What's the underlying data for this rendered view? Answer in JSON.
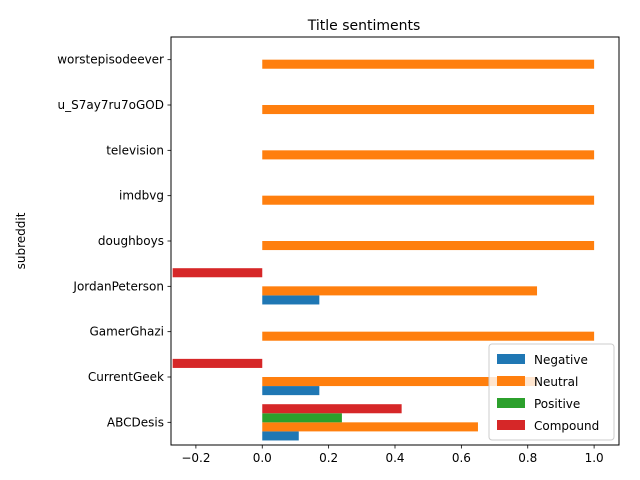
{
  "chart_data": {
    "type": "bar",
    "orientation": "horizontal",
    "title": "Title sentiments",
    "xlabel": "",
    "ylabel": "subreddit",
    "xlim": [
      -0.275,
      1.075
    ],
    "xticks": [
      -0.2,
      0.0,
      0.2,
      0.4,
      0.6,
      0.8,
      1.0
    ],
    "xtick_labels": [
      "−0.2",
      "0.0",
      "0.2",
      "0.4",
      "0.6",
      "0.8",
      "1.0"
    ],
    "categories": [
      "ABCDesis",
      "CurrentGeek",
      "GamerGhazi",
      "JordanPeterson",
      "doughboys",
      "imdbvg",
      "television",
      "u_S7ay7ru7oGOD",
      "worstepisodeever"
    ],
    "series": [
      {
        "name": "Negative",
        "color": "#1f77b4",
        "values": [
          0.11,
          0.172,
          0.0,
          0.172,
          0.0,
          0.0,
          0.0,
          0.0,
          0.0
        ]
      },
      {
        "name": "Neutral",
        "color": "#ff7f0e",
        "values": [
          0.65,
          0.828,
          1.0,
          0.828,
          1.0,
          1.0,
          1.0,
          1.0,
          1.0
        ]
      },
      {
        "name": "Positive",
        "color": "#2ca02c",
        "values": [
          0.24,
          0.0,
          0.0,
          0.0,
          0.0,
          0.0,
          0.0,
          0.0,
          0.0
        ]
      },
      {
        "name": "Compound",
        "color": "#d62728",
        "values": [
          0.42,
          -0.27,
          0.0,
          -0.27,
          0.0,
          0.0,
          0.0,
          0.0,
          0.0
        ]
      }
    ],
    "legend": {
      "position": "bottom-right"
    },
    "grid": false
  }
}
